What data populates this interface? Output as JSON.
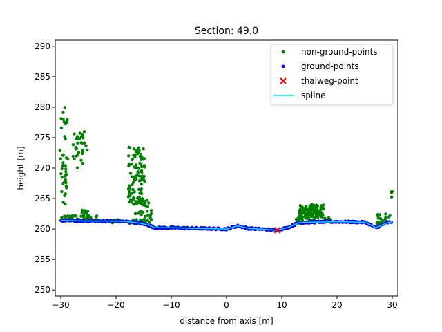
{
  "chart_data": {
    "type": "scatter",
    "title": "Section: 49.0",
    "xlabel": "distance from axis [m]",
    "ylabel": "height [m]",
    "xlim": [
      -31,
      31
    ],
    "ylim": [
      249,
      291
    ],
    "xticks": [
      -30,
      -20,
      -10,
      0,
      10,
      20,
      30
    ],
    "yticks": [
      250,
      255,
      260,
      265,
      270,
      275,
      280,
      285,
      290
    ],
    "legend_position": "top-right",
    "grid": false,
    "series": [
      {
        "name": "non-ground-points",
        "kind": "scatter",
        "color": "#008000",
        "clusters": [
          {
            "x": [
              -30.2,
              -28.7
            ],
            "y": [
              264.0,
              280.0
            ],
            "n": 40
          },
          {
            "x": [
              -27.8,
              -25.2
            ],
            "y": [
              270.0,
              276.0
            ],
            "n": 32
          },
          {
            "x": [
              -26.3,
              -25.1
            ],
            "y": [
              262.2,
              263.2
            ],
            "n": 8
          },
          {
            "x": [
              -30.0,
              -23.0
            ],
            "y": [
              261.2,
              262.2
            ],
            "n": 45
          },
          {
            "x": [
              -17.8,
              -14.8
            ],
            "y": [
              264.0,
              273.5
            ],
            "n": 95
          },
          {
            "x": [
              -16.5,
              -13.5
            ],
            "y": [
              261.0,
              265.0
            ],
            "n": 40
          },
          {
            "x": [
              -22.0,
              -14.0
            ],
            "y": [
              260.9,
              261.6
            ],
            "n": 22
          },
          {
            "x": [
              13.2,
              17.6
            ],
            "y": [
              262.0,
              264.0
            ],
            "n": 120
          },
          {
            "x": [
              11.5,
              19.0
            ],
            "y": [
              261.3,
              262.0
            ],
            "n": 30
          },
          {
            "x": [
              27.2,
              29.6
            ],
            "y": [
              260.8,
              262.6
            ],
            "n": 18
          },
          {
            "x": [
              29.5,
              30.0
            ],
            "y": [
              265.2,
              266.2
            ],
            "n": 4
          }
        ]
      },
      {
        "name": "ground-points",
        "kind": "scatter",
        "color": "#0000ff",
        "x": [
          -30,
          -25,
          -20,
          -18,
          -16,
          -14,
          -13,
          -10,
          -5,
          0,
          2,
          4,
          6,
          9,
          11,
          12,
          13,
          15,
          20,
          25,
          26,
          27,
          28,
          29,
          30
        ],
        "y": [
          261.4,
          261.3,
          261.3,
          261.2,
          261.0,
          260.6,
          260.2,
          260.2,
          260.1,
          260.0,
          260.5,
          260.1,
          260.0,
          259.8,
          260.2,
          260.6,
          261.0,
          261.1,
          261.2,
          261.1,
          260.7,
          260.2,
          260.6,
          261.0,
          261.2
        ]
      },
      {
        "name": "thalweg-point",
        "kind": "marker",
        "marker": "x",
        "color": "#ff0000",
        "x": [
          9.2
        ],
        "y": [
          259.8
        ]
      },
      {
        "name": "spline",
        "kind": "line",
        "color": "#00e5ff",
        "x": [
          -30,
          -25,
          -20,
          -18,
          -16,
          -14,
          -13,
          -10,
          -5,
          0,
          2,
          4,
          6,
          9,
          11,
          12,
          13,
          15,
          20,
          25,
          26,
          27,
          28,
          29,
          30
        ],
        "y": [
          261.4,
          261.3,
          261.3,
          261.2,
          261.0,
          260.6,
          260.2,
          260.2,
          260.1,
          260.0,
          260.5,
          260.1,
          260.0,
          259.8,
          260.2,
          260.6,
          261.0,
          261.1,
          261.2,
          261.1,
          260.7,
          260.2,
          260.6,
          261.0,
          261.2
        ]
      }
    ]
  }
}
